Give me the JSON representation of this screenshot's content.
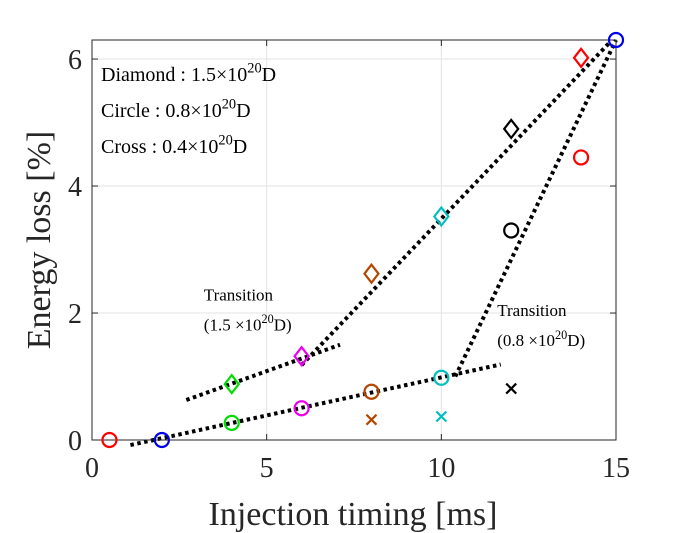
{
  "chart_data": {
    "type": "scatter",
    "xlabel": "Injection timing [ms]",
    "ylabel": "Energy loss [%]",
    "xlim": [
      0,
      15
    ],
    "ylim": [
      0,
      6.3
    ],
    "xticks": [
      0,
      5,
      10,
      15
    ],
    "yticks": [
      0,
      2,
      4,
      6
    ],
    "grid": true,
    "legend": {
      "placement": "top-left",
      "entries": [
        {
          "prefix": "Diamond : 1.5",
          "times": "×",
          "base": "10",
          "exp": "20",
          "unit": "D"
        },
        {
          "prefix": "Circle : 0.8",
          "times": "×",
          "base": "10",
          "exp": "20",
          "unit": "D"
        },
        {
          "prefix": "Cross : 0.4",
          "times": "×",
          "base": "10",
          "exp": "20",
          "unit": "D"
        }
      ]
    },
    "annotations": [
      {
        "line1": "Transition",
        "line2_prefix": "(1.5 ×",
        "base": "10",
        "exp": "20",
        "unit": "D)",
        "at": [
          3.2,
          2.2
        ]
      },
      {
        "line1": "Transition",
        "line2_prefix": "(0.8 ×",
        "base": "10",
        "exp": "20",
        "unit": "D)",
        "at": [
          11.6,
          1.95
        ]
      }
    ],
    "series": [
      {
        "name": "Diamond",
        "marker": "diamond",
        "points": [
          {
            "x": 4,
            "y": 0.88,
            "color": "#00dd00"
          },
          {
            "x": 6,
            "y": 1.32,
            "color": "#ee00ee"
          },
          {
            "x": 8,
            "y": 2.62,
            "color": "#b34700"
          },
          {
            "x": 10,
            "y": 3.52,
            "color": "#00bfbf"
          },
          {
            "x": 12,
            "y": 4.9,
            "color": "#000000"
          },
          {
            "x": 14,
            "y": 6.02,
            "color": "#ff0000"
          }
        ]
      },
      {
        "name": "Circle",
        "marker": "circle",
        "points": [
          {
            "x": 0.5,
            "y": 0.0,
            "color": "#ff0000"
          },
          {
            "x": 2,
            "y": 0.0,
            "color": "#0000ee"
          },
          {
            "x": 4,
            "y": 0.27,
            "color": "#00dd00"
          },
          {
            "x": 6,
            "y": 0.5,
            "color": "#ee00ee"
          },
          {
            "x": 8,
            "y": 0.76,
            "color": "#b34700"
          },
          {
            "x": 10,
            "y": 0.98,
            "color": "#00bfbf"
          },
          {
            "x": 12,
            "y": 3.3,
            "color": "#000000"
          },
          {
            "x": 14,
            "y": 4.45,
            "color": "#ff0000"
          },
          {
            "x": 15,
            "y": 6.3,
            "color": "#0000ee"
          }
        ]
      },
      {
        "name": "Cross",
        "marker": "cross",
        "points": [
          {
            "x": 8,
            "y": 0.32,
            "color": "#b34700"
          },
          {
            "x": 10,
            "y": 0.37,
            "color": "#00bfbf"
          },
          {
            "x": 12,
            "y": 0.81,
            "color": "#000000"
          }
        ]
      }
    ],
    "trend_lines": [
      {
        "name": "diamond-low-trend",
        "from": [
          2.7,
          0.63
        ],
        "to": [
          7.1,
          1.5
        ]
      },
      {
        "name": "diamond-high-trend",
        "from": [
          6.0,
          1.18
        ],
        "to": [
          14.8,
          6.25
        ]
      },
      {
        "name": "circle-low-trend",
        "from": [
          1.1,
          -0.08
        ],
        "to": [
          11.7,
          1.19
        ]
      },
      {
        "name": "circle-high-trend",
        "from": [
          10.4,
          1.0
        ],
        "to": [
          15.0,
          6.3
        ]
      }
    ]
  }
}
